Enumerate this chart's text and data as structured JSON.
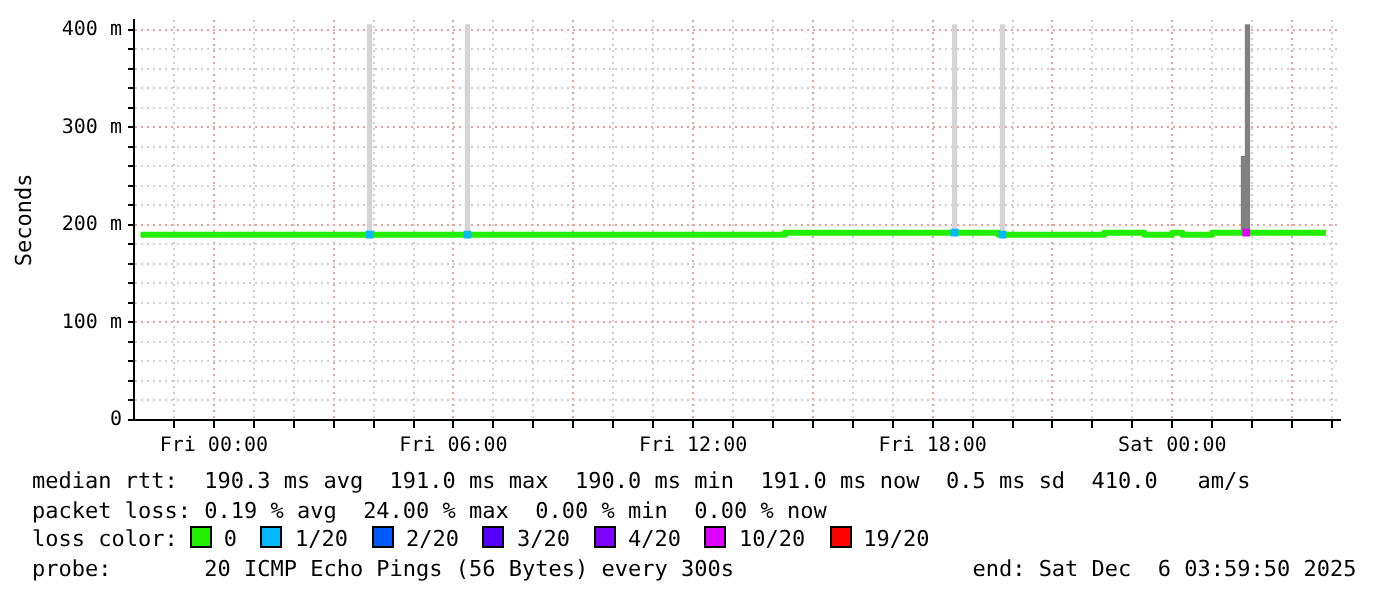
{
  "chart_data": {
    "type": "step",
    "ylabel": "Seconds",
    "legend_title": "loss color:",
    "legend": "bottom",
    "grid": true,
    "xlim": [
      "2025-12-04T22:00",
      "2025-12-06T04:12"
    ],
    "xticks": [
      {
        "value": "2025-12-04T23:00",
        "label": null
      },
      {
        "value": "2025-12-05T00:00",
        "label": "Fri 00:00"
      },
      {
        "value": "2025-12-05T01:00",
        "label": null
      },
      {
        "value": "2025-12-05T02:00",
        "label": null
      },
      {
        "value": "2025-12-05T03:00",
        "label": null
      },
      {
        "value": "2025-12-05T04:00",
        "label": null
      },
      {
        "value": "2025-12-05T05:00",
        "label": null
      },
      {
        "value": "2025-12-05T06:00",
        "label": "Fri 06:00"
      },
      {
        "value": "2025-12-05T07:00",
        "label": null
      },
      {
        "value": "2025-12-05T08:00",
        "label": null
      },
      {
        "value": "2025-12-05T09:00",
        "label": null
      },
      {
        "value": "2025-12-05T10:00",
        "label": null
      },
      {
        "value": "2025-12-05T11:00",
        "label": null
      },
      {
        "value": "2025-12-05T12:00",
        "label": "Fri 12:00"
      },
      {
        "value": "2025-12-05T13:00",
        "label": null
      },
      {
        "value": "2025-12-05T14:00",
        "label": null
      },
      {
        "value": "2025-12-05T15:00",
        "label": null
      },
      {
        "value": "2025-12-05T16:00",
        "label": null
      },
      {
        "value": "2025-12-05T17:00",
        "label": null
      },
      {
        "value": "2025-12-05T18:00",
        "label": "Fri 18:00"
      },
      {
        "value": "2025-12-05T19:00",
        "label": null
      },
      {
        "value": "2025-12-05T20:00",
        "label": null
      },
      {
        "value": "2025-12-05T21:00",
        "label": null
      },
      {
        "value": "2025-12-05T22:00",
        "label": null
      },
      {
        "value": "2025-12-05T23:00",
        "label": null
      },
      {
        "value": "2025-12-06T00:00",
        "label": "Sat 00:00"
      },
      {
        "value": "2025-12-06T01:00",
        "label": null
      },
      {
        "value": "2025-12-06T02:00",
        "label": null
      },
      {
        "value": "2025-12-06T03:00",
        "label": null
      },
      {
        "value": "2025-12-06T04:00",
        "label": null
      }
    ],
    "ylim": [
      0,
      410
    ],
    "yticks": [
      0,
      {
        "value": 20,
        "label": null
      },
      {
        "value": 40,
        "label": null
      },
      {
        "value": 60,
        "label": null
      },
      {
        "value": 80,
        "label": null
      },
      {
        "value": 100,
        "label": "100 m"
      },
      {
        "value": 120,
        "label": null
      },
      {
        "value": 140,
        "label": null
      },
      {
        "value": 160,
        "label": null
      },
      {
        "value": 180,
        "label": null
      },
      {
        "value": 200,
        "label": "200 m"
      },
      {
        "value": 220,
        "label": null
      },
      {
        "value": 240,
        "label": null
      },
      {
        "value": 260,
        "label": null
      },
      {
        "value": 280,
        "label": null
      },
      {
        "value": 300,
        "label": "300 m"
      },
      {
        "value": 320,
        "label": null
      },
      {
        "value": 340,
        "label": null
      },
      {
        "value": 360,
        "label": null
      },
      {
        "value": 380,
        "label": null
      },
      {
        "value": 400,
        "label": "400 m"
      }
    ],
    "series": [
      {
        "type": "bar",
        "x": [
          "2025-12-05T03:54",
          "2025-12-05T06:21",
          "2025-12-05T18:33",
          "2025-12-05T19:45",
          "2025-12-06T01:47",
          "2025-12-06T01:53"
        ],
        "base": [
          190,
          190,
          190,
          190,
          190,
          190
        ],
        "values": [
          215,
          215,
          215,
          215,
          80,
          215
        ],
        "colors": [
          "#d4d4d4",
          "#d4d4d4",
          "#d4d4d4",
          "#d4d4d4",
          "#808080",
          "#808080"
        ]
      },
      {
        "name": "0",
        "color": "#22ee00",
        "x": [
          "2025-12-04T22:10",
          "2025-12-05T14:18",
          "2025-12-05T19:39",
          "2025-12-05T22:18",
          "2025-12-05T23:18",
          "2025-12-06T00:00",
          "2025-12-06T00:15",
          "2025-12-06T01:00",
          "2025-12-06T03:51"
        ],
        "values": [
          190,
          192,
          190,
          192,
          190,
          192,
          190,
          192,
          192
        ]
      },
      {
        "type": "scatter",
        "name": "1/20",
        "color": "#00b8ff",
        "marker": "square",
        "x": [
          "2025-12-05T03:54",
          "2025-12-05T06:21",
          "2025-12-05T18:33",
          "2025-12-05T19:45"
        ],
        "values": [
          190,
          190,
          192,
          190
        ]
      },
      {
        "type": "scatter",
        "name": "2/20",
        "color": "#0059ff",
        "marker": "square"
      },
      {
        "type": "scatter",
        "name": "3/20",
        "color": "#5500ff",
        "marker": "square"
      },
      {
        "type": "scatter",
        "name": "4/20",
        "color": "#7e00ff",
        "marker": "square"
      },
      {
        "type": "scatter",
        "name": "10/20",
        "color": "#dd00ff",
        "marker": "square",
        "x": [
          "2025-12-06T01:51"
        ],
        "values": [
          192
        ]
      },
      {
        "type": "scatter",
        "name": "19/20",
        "color": "#ff0000",
        "marker": "square"
      }
    ],
    "annotations": [
      "median rtt:  190.3 ms avg  191.0 ms max  190.0 ms min  191.0 ms now  0.5 ms sd  410.0   am/s",
      "packet loss: 0.19 % avg  24.00 % max  0.00 % min  0.00 % now",
      "probe:       20 ICMP Echo Pings (56 Bytes) every 300s                  end: Sat Dec  6 03:59:50 2025"
    ]
  }
}
